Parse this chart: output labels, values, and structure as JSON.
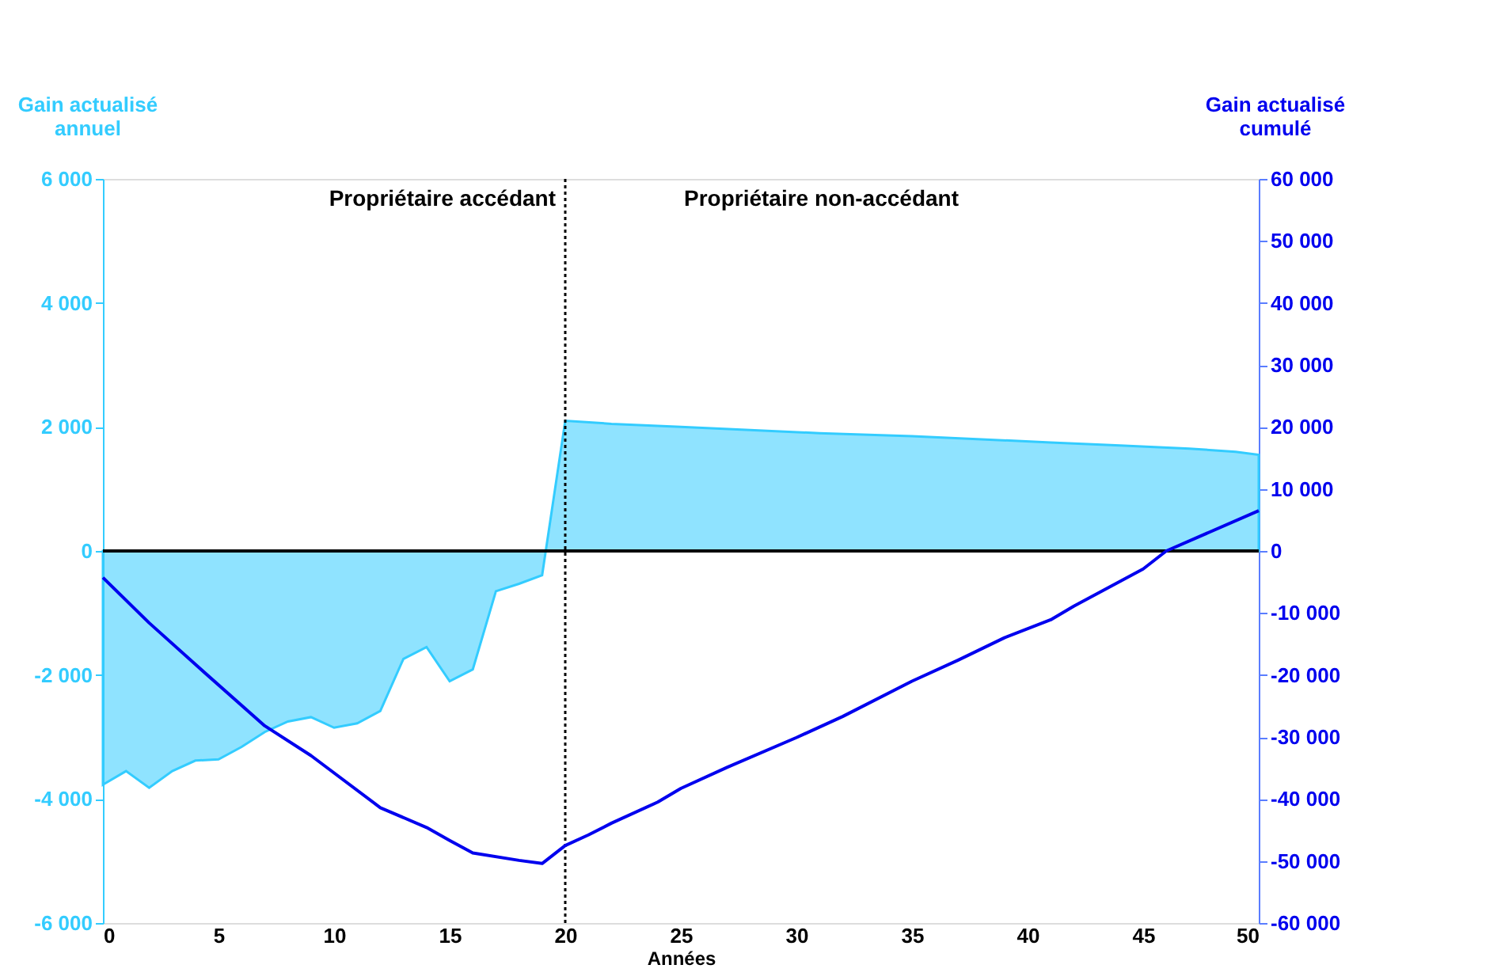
{
  "chart_data": {
    "type": "area",
    "xlabel": "Années",
    "ylabel": "Gain actualisé annuel",
    "y2label": "Gain actualisé cumulé",
    "xlim": [
      0,
      50
    ],
    "xticks": [
      0,
      5,
      10,
      15,
      20,
      25,
      30,
      35,
      40,
      45,
      50
    ],
    "ylim": [
      -6000,
      6000
    ],
    "yticks": [
      {
        "value": -6000,
        "label": "-6 000"
      },
      {
        "value": -4000,
        "label": "-4 000"
      },
      {
        "value": -2000,
        "label": "-2 000"
      },
      0,
      {
        "value": 2000,
        "label": "2 000"
      },
      {
        "value": 4000,
        "label": "4 000"
      },
      {
        "value": 6000,
        "label": "6 000"
      }
    ],
    "y2lim": [
      -60000,
      60000
    ],
    "y2ticks": [
      {
        "value": -60000,
        "label": "-60 000"
      },
      {
        "value": -50000,
        "label": "-50 000"
      },
      {
        "value": -40000,
        "label": "-40 000"
      },
      {
        "value": -30000,
        "label": "-30 000"
      },
      {
        "value": -20000,
        "label": "-20 000"
      },
      {
        "value": -10000,
        "label": "-10 000"
      },
      0,
      {
        "value": 10000,
        "label": "10 000"
      },
      {
        "value": 20000,
        "label": "20 000"
      },
      {
        "value": 30000,
        "label": "30 000"
      },
      {
        "value": 40000,
        "label": "40 000"
      },
      {
        "value": 50000,
        "label": "50 000"
      },
      {
        "value": 60000,
        "label": "60 000"
      }
    ],
    "series": [
      {
        "color": "#33ccff",
        "x": [
          0,
          1,
          2,
          3,
          4,
          5,
          6,
          7,
          8,
          9,
          10,
          11,
          12,
          13,
          14,
          15,
          16,
          17,
          18,
          19,
          20,
          22,
          25,
          28,
          31,
          35,
          38,
          41,
          44,
          47,
          49,
          50
        ],
        "values": [
          -3770,
          -3550,
          -3820,
          -3550,
          -3380,
          -3360,
          -3160,
          -2920,
          -2750,
          -2680,
          -2850,
          -2780,
          -2580,
          -1740,
          -1550,
          -2100,
          -1910,
          -650,
          -530,
          -390,
          2100,
          2050,
          2000,
          1950,
          1900,
          1850,
          1800,
          1750,
          1700,
          1650,
          1600,
          1550
        ]
      },
      {
        "type": "line",
        "axis": "y2",
        "color": "#0000ee",
        "x": [
          0,
          2,
          4,
          7,
          9,
          12,
          14,
          15,
          16,
          18,
          19,
          20,
          21,
          22,
          24,
          25,
          27,
          30,
          32,
          35,
          37,
          39,
          41,
          42,
          45,
          46,
          50
        ],
        "values": [
          -4300,
          -11600,
          -18300,
          -28200,
          -33000,
          -41400,
          -44600,
          -46700,
          -48700,
          -49900,
          -50400,
          -47500,
          -45800,
          -43900,
          -40500,
          -38300,
          -34900,
          -30100,
          -26700,
          -21000,
          -17600,
          -14000,
          -11100,
          -8900,
          -2900,
          0,
          6500
        ]
      }
    ],
    "ref_lines": [
      {
        "axis": "x",
        "value": 20,
        "color": "#000000",
        "line_style": "dotted"
      },
      {
        "axis": "y",
        "value": 0,
        "color": "#000000",
        "line_style": "solid"
      }
    ],
    "annotations": [
      "Propriétaire accédant",
      "Propriétaire non-accédant"
    ],
    "grid": false
  }
}
